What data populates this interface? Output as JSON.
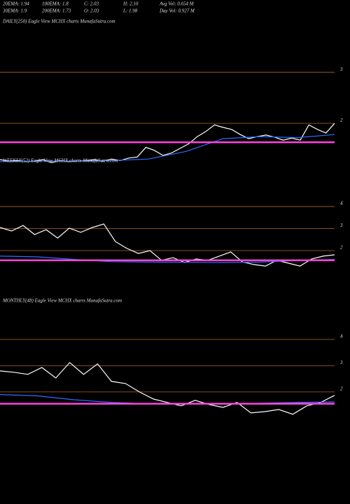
{
  "header": {
    "rows": [
      [
        "20EMA: 1.94",
        "100EMA: 1.8",
        "C: 2.03",
        "H: 2.10",
        "Avg Vol: 0.654  M"
      ],
      [
        "30EMA: 1.9",
        "200EMA: 1.73",
        "O: 2.03",
        "L: 1.98",
        "Day Vol: 0.927  M"
      ]
    ]
  },
  "chart_data": [
    {
      "type": "line",
      "title": "DAILY(250) Eagle  View  MCHX  charts MunafaSutra.com",
      "ylim": [
        0.44,
        4.14
      ],
      "yticks": [
        2,
        3
      ],
      "grid": true,
      "series": [
        {
          "color": "#ffffff",
          "values": [
            1.29,
            1.26,
            1.27,
            1.25,
            1.26,
            1.29,
            1.23,
            1.27,
            1.25,
            1.26,
            1.27,
            1.29,
            1.26,
            1.3,
            1.27,
            1.32,
            1.34,
            1.53,
            1.47,
            1.37,
            1.42,
            1.51,
            1.6,
            1.74,
            1.84,
            1.97,
            1.92,
            1.88,
            1.78,
            1.7,
            1.74,
            1.77,
            1.73,
            1.67,
            1.71,
            1.67,
            1.97,
            1.88,
            1.81,
            2.0
          ]
        },
        {
          "color": "#2e6cff",
          "values": [
            1.25,
            1.26,
            1.26,
            1.27,
            1.3,
            1.45,
            1.7,
            1.74,
            1.72,
            1.78
          ]
        },
        {
          "color": "#ff44dd",
          "values": [
            1.63,
            1.63
          ]
        }
      ]
    },
    {
      "type": "line",
      "title": "WEEKLY(52) Eagle  View  MCHX  charts MunafaSutra.com",
      "ylim": [
        0.35,
        4.16
      ],
      "yticks": [
        2,
        3,
        4
      ],
      "grid": true,
      "series": [
        {
          "color": "#ffffff",
          "values": [
            3.05,
            2.89,
            3.14,
            2.73,
            2.95,
            2.57,
            3.02,
            2.83,
            3.05,
            3.21,
            2.41,
            2.1,
            1.87,
            2.0,
            1.56,
            1.68,
            1.46,
            1.62,
            1.56,
            1.75,
            1.94,
            1.49,
            1.37,
            1.3,
            1.56,
            1.43,
            1.3,
            1.62,
            1.75,
            1.81
          ]
        },
        {
          "color": "#2e6cff",
          "values": [
            1.75,
            1.72,
            1.6,
            1.5,
            1.48,
            1.47,
            1.46,
            1.48,
            1.55,
            1.6
          ]
        },
        {
          "color": "#ff44dd",
          "values": [
            1.56,
            1.56
          ]
        }
      ]
    },
    {
      "type": "line",
      "title": "MONTHLY(48) Eagle  View  MCHX  charts MunafaSutra.com",
      "ylim": [
        -0.67,
        5.73
      ],
      "yticks": [
        2,
        3,
        4
      ],
      "grid": true,
      "series": [
        {
          "color": "#ffffff",
          "values": [
            2.8,
            2.75,
            2.67,
            2.93,
            2.53,
            3.12,
            2.67,
            3.07,
            2.4,
            2.32,
            2.0,
            1.73,
            1.6,
            1.47,
            1.68,
            1.52,
            1.41,
            1.6,
            1.2,
            1.25,
            1.33,
            1.15,
            1.47,
            1.6,
            1.87
          ]
        },
        {
          "color": "#2e6cff",
          "values": [
            1.9,
            1.85,
            1.7,
            1.6,
            1.55,
            1.55,
            1.55,
            1.57,
            1.6,
            1.62
          ]
        },
        {
          "color": "#ff44dd",
          "values": [
            1.55,
            1.55
          ]
        }
      ]
    }
  ]
}
